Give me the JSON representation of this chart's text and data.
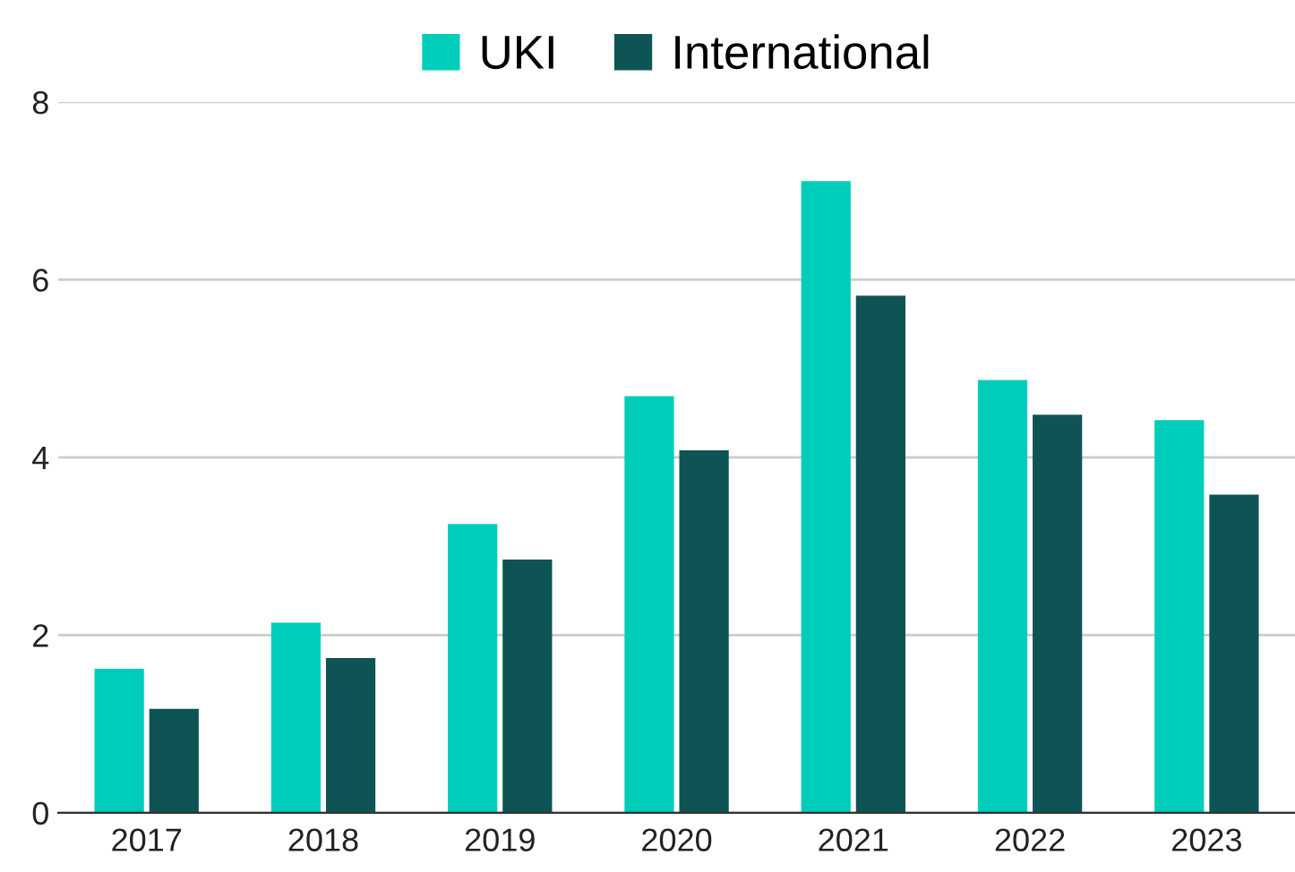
{
  "chart_data": {
    "type": "bar",
    "categories": [
      "2017",
      "2018",
      "2019",
      "2020",
      "2021",
      "2022",
      "2023"
    ],
    "series": [
      {
        "name": "UKI",
        "color": "#00cdb9",
        "values": [
          1.62,
          2.14,
          3.25,
          4.69,
          7.11,
          4.87,
          4.42
        ]
      },
      {
        "name": "International",
        "color": "#0f5454",
        "values": [
          1.17,
          1.74,
          2.85,
          4.08,
          5.82,
          4.48,
          3.58
        ]
      }
    ],
    "ylim": [
      0,
      8
    ],
    "yticks": [
      0,
      2,
      4,
      6,
      8
    ],
    "grid": "y",
    "legend": "top"
  }
}
